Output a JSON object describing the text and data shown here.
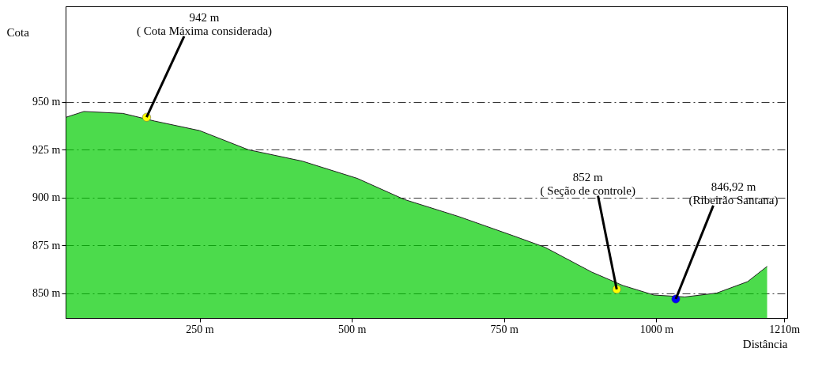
{
  "chart_data": {
    "type": "area",
    "ylabel": "Cota",
    "xlabel": "Distância",
    "x": [
      31,
      60,
      124,
      176,
      250,
      330,
      419,
      509,
      586,
      676,
      765,
      817,
      894,
      945,
      996,
      1047,
      1099,
      1150,
      1182
    ],
    "series": [
      {
        "color": "#00cc00",
        "values": [
          942,
          945,
          944,
          940,
          935,
          925,
          919,
          910,
          899,
          890,
          880,
          874,
          861,
          854,
          849,
          848,
          850,
          856,
          864
        ]
      },
      {
        "type": "scatter",
        "x": [
          163,
          935,
          1032
        ],
        "values": [
          942,
          852,
          846.92
        ],
        "colors": [
          "#ffff00",
          "#ffff00",
          "#0000ff"
        ]
      }
    ],
    "annotations": [
      {
        "text": "942 m\n( Cota Máxima considerada)",
        "x": 163,
        "y": 942
      },
      {
        "text": "852 m\n( Seção de controle)",
        "x": 935,
        "y": 852
      },
      {
        "text": "846,92 m\n(Ribeirão Santana)",
        "x": 1032,
        "y": 846.92
      }
    ],
    "xlim": [
      30,
      1215
    ],
    "ylim": [
      837,
      1000
    ],
    "xticks": [
      {
        "value": 250,
        "label": "250 m"
      },
      {
        "value": 500,
        "label": "500 m"
      },
      {
        "value": 750,
        "label": "750 m"
      },
      {
        "value": 1000,
        "label": "1000 m"
      },
      {
        "value": 1210,
        "label": "1210m"
      }
    ],
    "yticks": [
      {
        "value": 850,
        "label": "850 m"
      },
      {
        "value": 875,
        "label": "875 m"
      },
      {
        "value": 900,
        "label": "900 m"
      },
      {
        "value": 925,
        "label": "925 m"
      },
      {
        "value": 950,
        "label": "950 m"
      }
    ],
    "grid": "y",
    "legend": false
  }
}
